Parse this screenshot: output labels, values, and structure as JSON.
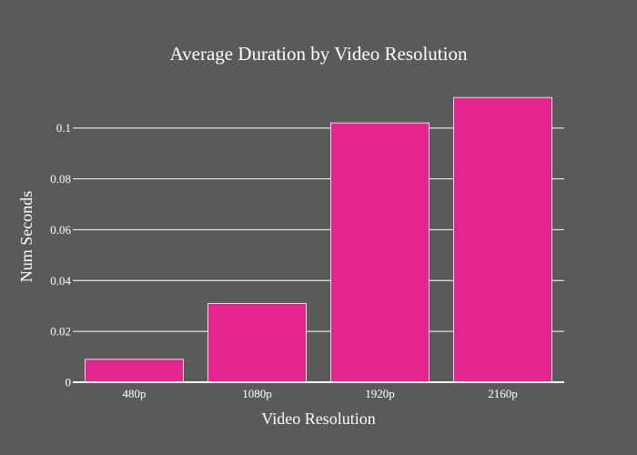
{
  "chart_data": {
    "type": "bar",
    "title": "Average Duration by Video Resolution",
    "xlabel": "Video Resolution",
    "ylabel": "Num Seconds",
    "categories": [
      "480p",
      "1080p",
      "1920p",
      "2160p"
    ],
    "values": [
      0.009,
      0.031,
      0.102,
      0.112
    ],
    "ylim": [
      0,
      0.116
    ],
    "yticks": [
      0,
      0.02,
      0.04,
      0.06,
      0.08,
      0.1
    ],
    "ytick_labels": [
      "0",
      "0.02",
      "0.04",
      "0.06",
      "0.08",
      "0.1"
    ],
    "grid": true,
    "colors": {
      "background": "#5a5a5a",
      "bar": "#e3258f",
      "bar_outline": "#ffffff",
      "text": "#ffffff",
      "grid": "#ffffff"
    }
  }
}
